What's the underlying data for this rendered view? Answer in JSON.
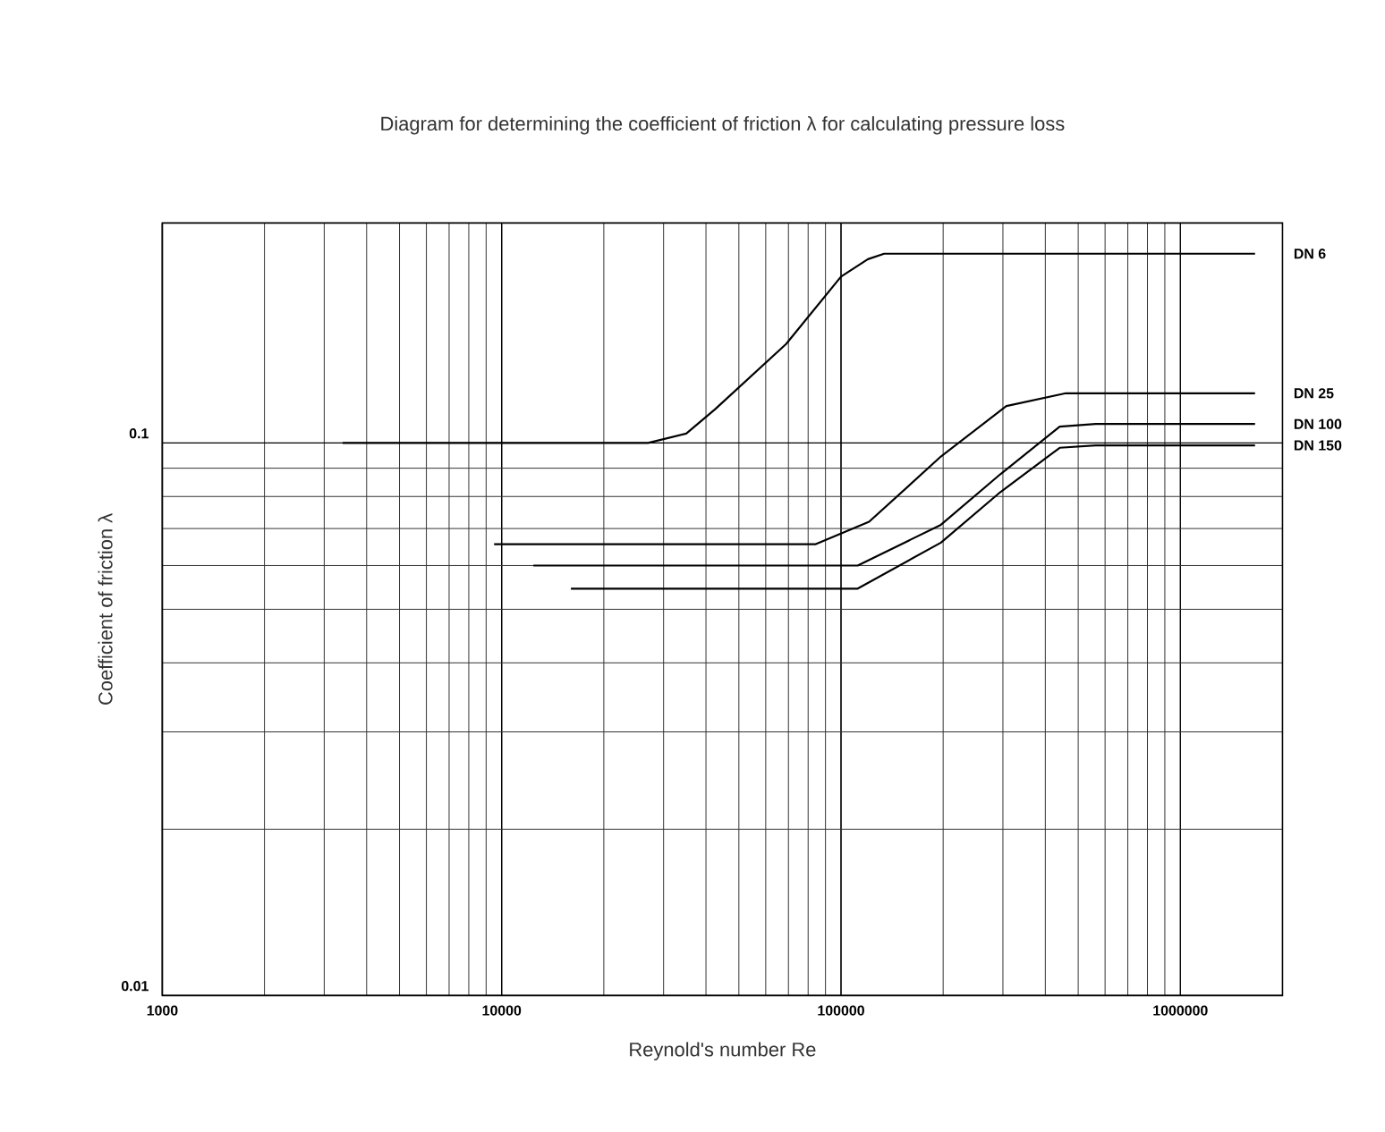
{
  "chart_data": {
    "type": "line",
    "title": "Diagram for determining the coefficient of friction λ for calculating pressure loss",
    "xlabel": "Reynold's number Re",
    "ylabel": "Coefficient of friction λ",
    "log": "xy",
    "grid": true,
    "legend": false,
    "xlim": [
      1000,
      2000000
    ],
    "ylim": [
      0.01,
      0.25
    ],
    "xticks": [
      1000,
      10000,
      100000,
      1000000
    ],
    "yticks": [
      0.01,
      0.1
    ],
    "series": [
      {
        "name": "DN 6",
        "color": "#000000",
        "x": [
          3400,
          27000,
          35000,
          42500,
          68900,
          100000,
          120000,
          134000,
          1660000
        ],
        "values": [
          0.1,
          0.1,
          0.104,
          0.115,
          0.151,
          0.2,
          0.215,
          0.22,
          0.22
        ]
      },
      {
        "name": "DN 25",
        "color": "#000000",
        "x": [
          9500,
          84300,
          121000,
          197000,
          307000,
          460000,
          1660000
        ],
        "values": [
          0.0656,
          0.0656,
          0.072,
          0.0945,
          0.1166,
          0.123,
          0.123
        ]
      },
      {
        "name": "DN 100",
        "color": "#000000",
        "x": [
          12400,
          112000,
          197000,
          295000,
          441000,
          563000,
          1660000
        ],
        "values": [
          0.06,
          0.06,
          0.0711,
          0.0878,
          0.107,
          0.1082,
          0.1082
        ]
      },
      {
        "name": "DN 150",
        "color": "#000000",
        "x": [
          16000,
          112000,
          197000,
          295000,
          441000,
          563000,
          1660000
        ],
        "values": [
          0.0545,
          0.0545,
          0.066,
          0.0815,
          0.098,
          0.099,
          0.099
        ]
      }
    ]
  }
}
